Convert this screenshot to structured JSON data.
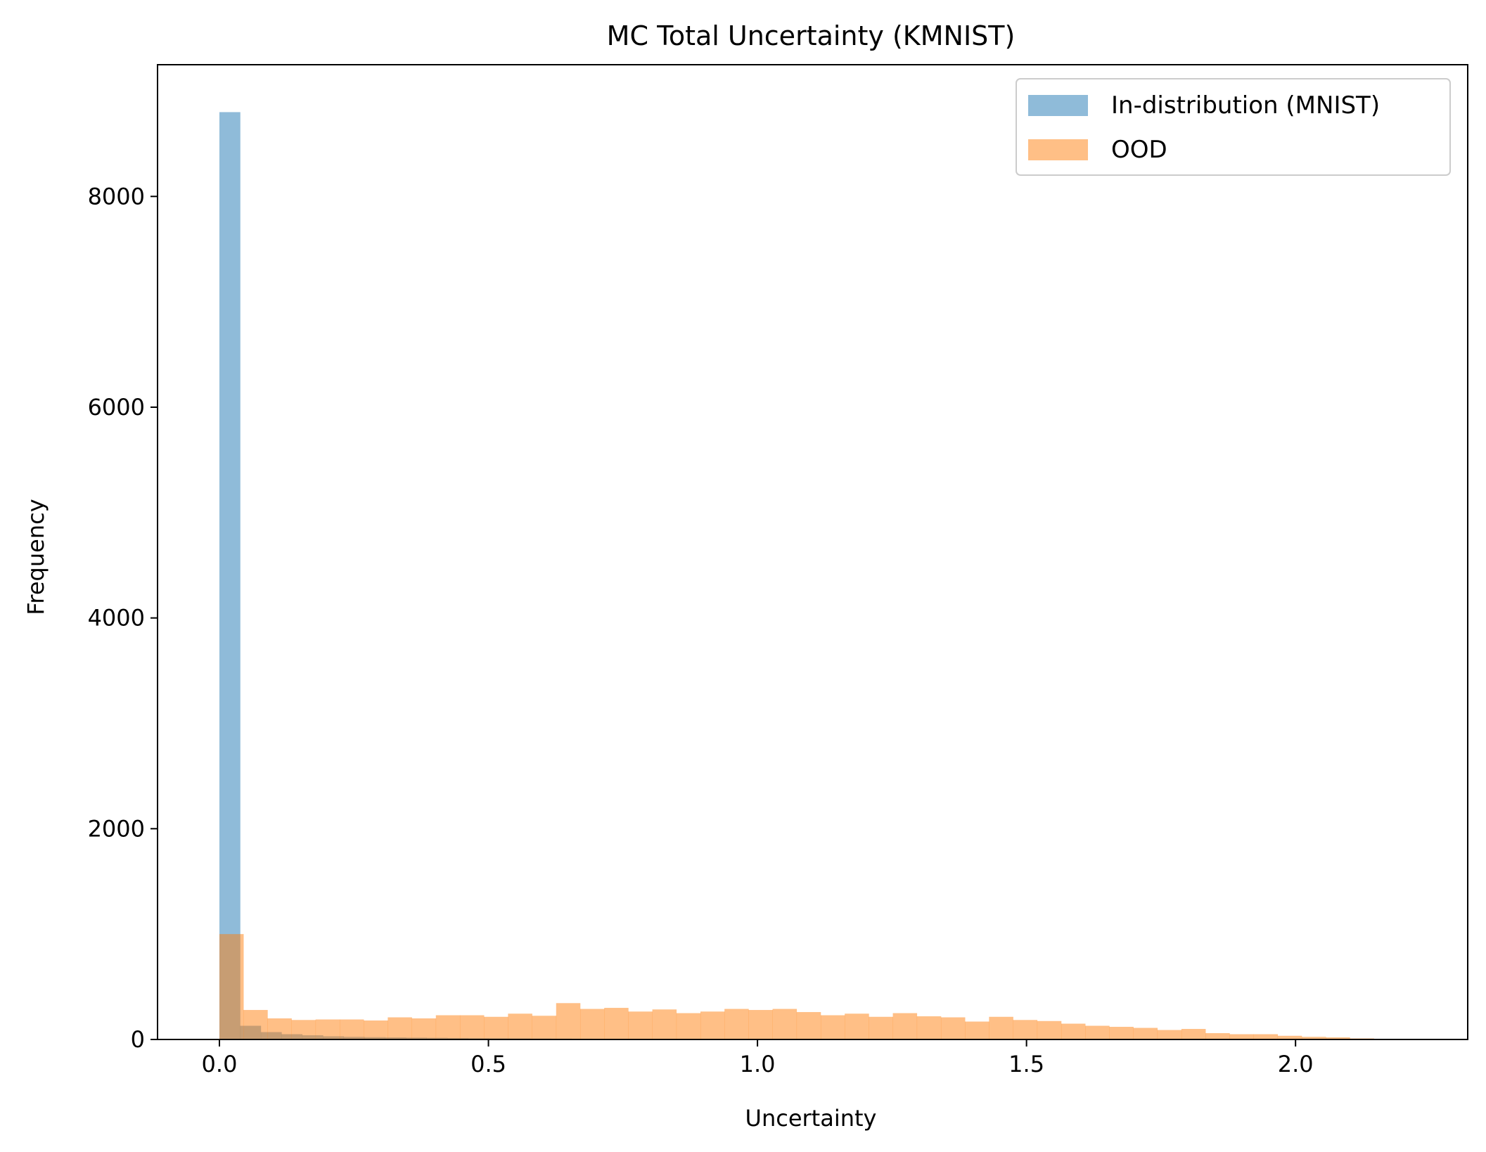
{
  "chart_data": {
    "type": "histogram",
    "title": "MC Total Uncertainty (KMNIST)",
    "xlabel": "Uncertainty",
    "ylabel": "Frequency",
    "xlim": [
      -0.115,
      2.32
    ],
    "ylim": [
      0,
      9250
    ],
    "xticks": [
      0.0,
      0.5,
      1.0,
      1.5,
      2.0
    ],
    "xtick_labels": [
      "0.0",
      "0.5",
      "1.0",
      "1.5",
      "2.0"
    ],
    "yticks": [
      0,
      2000,
      4000,
      6000,
      8000
    ],
    "ytick_labels": [
      "0",
      "2000",
      "4000",
      "6000",
      "8000"
    ],
    "grid": false,
    "legend_position": "top-right",
    "series": [
      {
        "name": "In-distribution (MNIST)",
        "color": "#1f77b4",
        "alpha": 0.5,
        "bin_start": 0.0,
        "bin_width": 0.0385,
        "values": [
          8800,
          130,
          70,
          50,
          40,
          30,
          25,
          22,
          20,
          18,
          16,
          14,
          12,
          11,
          10,
          9,
          8,
          7,
          6,
          5,
          5,
          4,
          4,
          3,
          3,
          3,
          2,
          2,
          2,
          2,
          1,
          1,
          1,
          1
        ]
      },
      {
        "name": "OOD",
        "color": "#ff7f0e",
        "alpha": 0.5,
        "bin_start": 0.0,
        "bin_width": 0.0447,
        "values": [
          1000,
          280,
          200,
          185,
          190,
          190,
          180,
          210,
          200,
          230,
          230,
          215,
          245,
          225,
          345,
          290,
          300,
          265,
          285,
          250,
          265,
          290,
          280,
          290,
          260,
          230,
          245,
          215,
          250,
          220,
          210,
          170,
          215,
          185,
          175,
          150,
          130,
          120,
          110,
          90,
          100,
          60,
          50,
          50,
          35,
          25,
          20,
          10,
          5,
          2
        ]
      }
    ]
  }
}
